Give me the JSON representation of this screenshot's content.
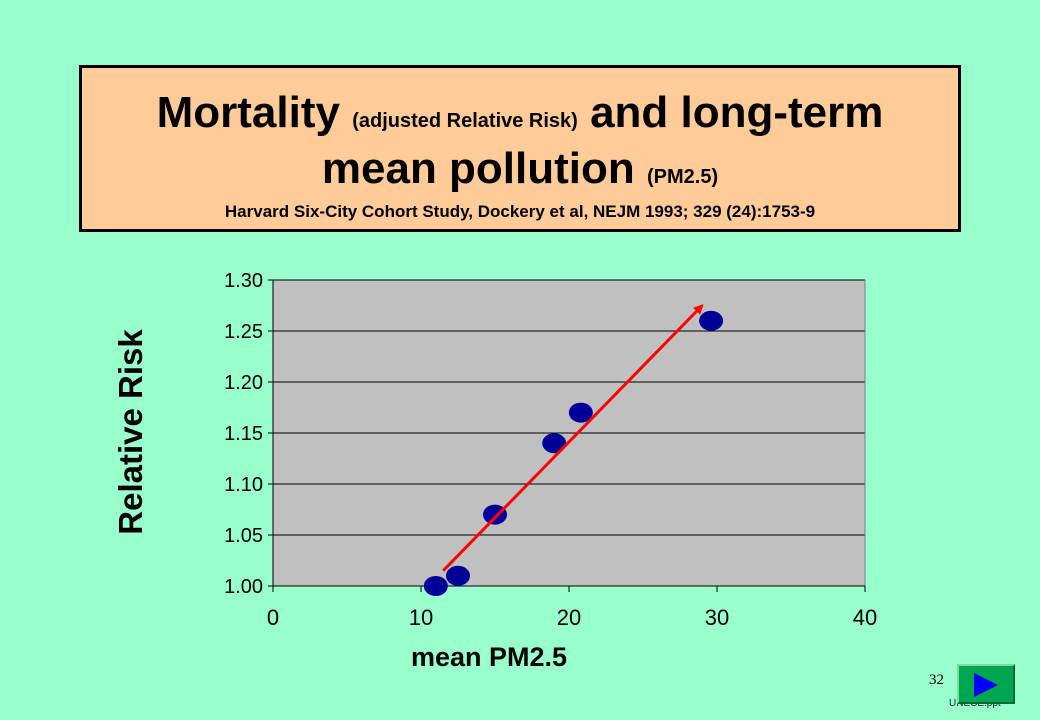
{
  "slide": {
    "title_big1": "Mortality",
    "title_small1": "(adjusted Relative Risk)",
    "title_big2": "and long-term",
    "title_big3": "mean pollution",
    "title_small2": "(PM2.5)",
    "subtitle": "Harvard Six-City Cohort Study, Dockery et al, NEJM 1993; 329 (24):1753-9",
    "slide_number": "32",
    "footer": "UNECE.ppt",
    "next_button_icon": "play-icon"
  },
  "colors": {
    "background": "#99ffcc",
    "title_box": "#ffcc99",
    "plot_area": "#c0c0c0",
    "points": "#000099",
    "arrow": "#ff0000",
    "button": "#00a651"
  },
  "chart_data": {
    "type": "scatter",
    "xlabel": "mean PM2.5",
    "ylabel": "Relative Risk",
    "xlim": [
      0,
      40
    ],
    "ylim": [
      1.0,
      1.3
    ],
    "x_ticks": [
      "0",
      "10",
      "20",
      "30",
      "40"
    ],
    "y_ticks": [
      "1.00",
      "1.05",
      "1.10",
      "1.15",
      "1.20",
      "1.25",
      "1.30"
    ],
    "grid": "horizontal",
    "points": [
      {
        "x": 11.0,
        "y": 1.0
      },
      {
        "x": 12.5,
        "y": 1.01
      },
      {
        "x": 15.0,
        "y": 1.07
      },
      {
        "x": 19.0,
        "y": 1.14
      },
      {
        "x": 20.8,
        "y": 1.17
      },
      {
        "x": 29.6,
        "y": 1.26
      }
    ],
    "trend_arrow": {
      "from": {
        "x": 11.5,
        "y": 1.015
      },
      "to": {
        "x": 29.0,
        "y": 1.275
      }
    }
  }
}
